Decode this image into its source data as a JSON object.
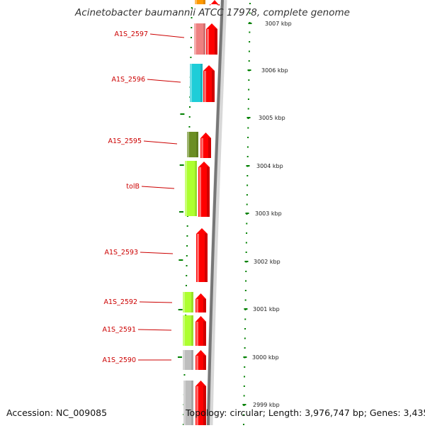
{
  "map": {
    "title": "Acinetobacter baumannii ATCC 17978, complete genome",
    "accession": "Accession: NC_009085",
    "stats": "Topology: circular; Length: 3,976,747 bp; Genes: 3,435"
  },
  "scale_labels": [
    "3007 kbp",
    "3006 kbp",
    "3005 kbp",
    "3004 kbp",
    "3003 kbp",
    "3002 kbp",
    "3001 kbp",
    "3000 kbp",
    "2999 kbp"
  ],
  "gene_labels": [
    "A1S_2597",
    "A1S_2596",
    "A1S_2595",
    "tolB",
    "A1S_2593",
    "A1S_2592",
    "A1S_2591",
    "A1S_2590"
  ],
  "colors": {
    "label": "#cc0000",
    "tick": "#008000",
    "backbone": "#777777",
    "cds": "#ff0000",
    "gene_pink": "#ee8080",
    "gene_cyan": "#1ecdd8",
    "gene_olive": "#6b8e23",
    "gene_lime": "#adff2f",
    "gene_gray": "#bdbdbd",
    "gene_orange": "#ff9900"
  }
}
